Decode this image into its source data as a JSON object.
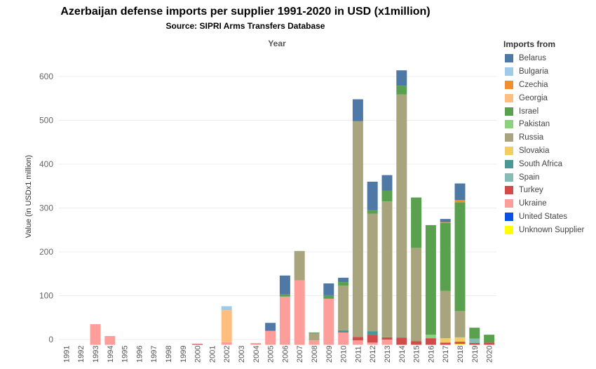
{
  "chart_data": {
    "type": "bar",
    "stacked": true,
    "title": "Azerbaijan defense imports per supplier 1991-2020 in USD (x1million)",
    "subtitle": "Source: SIPRI Arms Transfers Database",
    "xlabel": "Year",
    "ylabel": "Value (in USDx1 million)",
    "ylim": [
      -12,
      650
    ],
    "yticks": [
      0,
      100,
      200,
      300,
      400,
      500,
      600
    ],
    "grid": true,
    "legend_title": "Imports from",
    "legend_position": "right",
    "categories": [
      "1991",
      "1992",
      "1993",
      "1994",
      "1995",
      "1996",
      "1997",
      "1998",
      "1999",
      "2000",
      "2001",
      "2002",
      "2003",
      "2004",
      "2005",
      "2006",
      "2007",
      "2008",
      "2009",
      "2010",
      "2011",
      "2012",
      "2013",
      "2014",
      "2015",
      "2016",
      "2017",
      "2018",
      "2019",
      "2020"
    ],
    "series": [
      {
        "name": "Unknown Supplier",
        "color": "#ffff00",
        "values": [
          0,
          0,
          0,
          0,
          0,
          0,
          0,
          0,
          0,
          0,
          0,
          0,
          0,
          0,
          0,
          0,
          0,
          0,
          0,
          0,
          0,
          0,
          0,
          0,
          0,
          0,
          0,
          2,
          0,
          0
        ]
      },
      {
        "name": "United States",
        "color": "#0a50e6",
        "values": [
          0,
          0,
          0,
          0,
          0,
          0,
          0,
          0,
          0,
          0,
          0,
          0,
          0,
          0,
          0,
          0,
          0,
          0,
          0,
          0,
          0,
          0,
          0,
          0,
          0,
          0,
          0,
          0,
          0,
          0
        ]
      },
      {
        "name": "Ukraine",
        "color": "#ff9d9a",
        "values": [
          0,
          0,
          47,
          20,
          0,
          0,
          0,
          0,
          0,
          0,
          0,
          6,
          0,
          4,
          32,
          110,
          147,
          10,
          105,
          28,
          10,
          5,
          12,
          0,
          0,
          0,
          0,
          0,
          0,
          0
        ]
      },
      {
        "name": "Turkey",
        "color": "#d14b4b",
        "values": [
          0,
          0,
          0,
          0,
          0,
          0,
          0,
          0,
          0,
          2,
          0,
          0,
          0,
          0,
          0,
          0,
          0,
          0,
          0,
          0,
          8,
          18,
          5,
          16,
          8,
          15,
          5,
          5,
          4,
          5
        ]
      },
      {
        "name": "Spain",
        "color": "#86bcb6",
        "values": [
          0,
          0,
          0,
          0,
          0,
          0,
          0,
          0,
          0,
          0,
          0,
          0,
          0,
          0,
          0,
          0,
          0,
          0,
          0,
          0,
          0,
          0,
          0,
          0,
          0,
          0,
          0,
          0,
          10,
          0
        ]
      },
      {
        "name": "South Africa",
        "color": "#499894",
        "values": [
          0,
          0,
          0,
          0,
          0,
          0,
          0,
          0,
          0,
          0,
          0,
          0,
          0,
          0,
          0,
          0,
          0,
          0,
          0,
          5,
          0,
          8,
          0,
          0,
          0,
          0,
          0,
          0,
          0,
          0
        ]
      },
      {
        "name": "Slovakia",
        "color": "#f1ce63",
        "values": [
          0,
          0,
          0,
          0,
          0,
          0,
          0,
          0,
          0,
          0,
          0,
          0,
          0,
          0,
          0,
          0,
          0,
          0,
          0,
          0,
          0,
          0,
          0,
          0,
          0,
          0,
          10,
          10,
          0,
          0
        ]
      },
      {
        "name": "Russia",
        "color": "#a8a47e",
        "values": [
          0,
          0,
          0,
          0,
          0,
          0,
          0,
          0,
          0,
          0,
          0,
          0,
          0,
          0,
          0,
          0,
          67,
          16,
          0,
          102,
          492,
          268,
          310,
          555,
          213,
          0,
          108,
          60,
          0,
          0
        ]
      },
      {
        "name": "Pakistan",
        "color": "#8cd17d",
        "values": [
          0,
          0,
          0,
          0,
          0,
          0,
          0,
          0,
          0,
          0,
          0,
          0,
          0,
          0,
          0,
          0,
          0,
          0,
          0,
          0,
          0,
          0,
          0,
          0,
          0,
          8,
          0,
          0,
          0,
          0
        ]
      },
      {
        "name": "Israel",
        "color": "#59a14f",
        "values": [
          0,
          0,
          0,
          0,
          0,
          0,
          0,
          0,
          0,
          0,
          0,
          0,
          0,
          0,
          0,
          5,
          0,
          2,
          8,
          8,
          0,
          8,
          25,
          20,
          115,
          250,
          155,
          248,
          25,
          18
        ]
      },
      {
        "name": "Georgia",
        "color": "#ffbe7d",
        "values": [
          0,
          0,
          0,
          0,
          0,
          0,
          0,
          0,
          0,
          0,
          0,
          73,
          0,
          0,
          0,
          0,
          0,
          0,
          0,
          0,
          0,
          0,
          0,
          0,
          0,
          0,
          0,
          0,
          0,
          0
        ]
      },
      {
        "name": "Czechia",
        "color": "#f28e2b",
        "values": [
          0,
          0,
          0,
          0,
          0,
          0,
          0,
          0,
          0,
          0,
          0,
          0,
          0,
          0,
          0,
          0,
          0,
          0,
          0,
          0,
          0,
          0,
          0,
          0,
          0,
          0,
          2,
          5,
          0,
          0
        ]
      },
      {
        "name": "Bulgaria",
        "color": "#a0cbe8",
        "values": [
          0,
          0,
          0,
          0,
          0,
          0,
          0,
          0,
          0,
          0,
          0,
          9,
          0,
          0,
          0,
          0,
          0,
          0,
          0,
          0,
          0,
          0,
          0,
          0,
          0,
          0,
          0,
          0,
          0,
          0
        ]
      },
      {
        "name": "Belarus",
        "color": "#4e79a7",
        "values": [
          0,
          0,
          0,
          0,
          0,
          0,
          0,
          0,
          0,
          0,
          0,
          0,
          0,
          0,
          18,
          43,
          0,
          0,
          27,
          10,
          50,
          65,
          35,
          35,
          0,
          0,
          7,
          38,
          0,
          0
        ]
      }
    ],
    "legend_order": [
      "Belarus",
      "Bulgaria",
      "Czechia",
      "Georgia",
      "Israel",
      "Pakistan",
      "Russia",
      "Slovakia",
      "South Africa",
      "Spain",
      "Turkey",
      "Ukraine",
      "United States",
      "Unknown Supplier"
    ]
  }
}
